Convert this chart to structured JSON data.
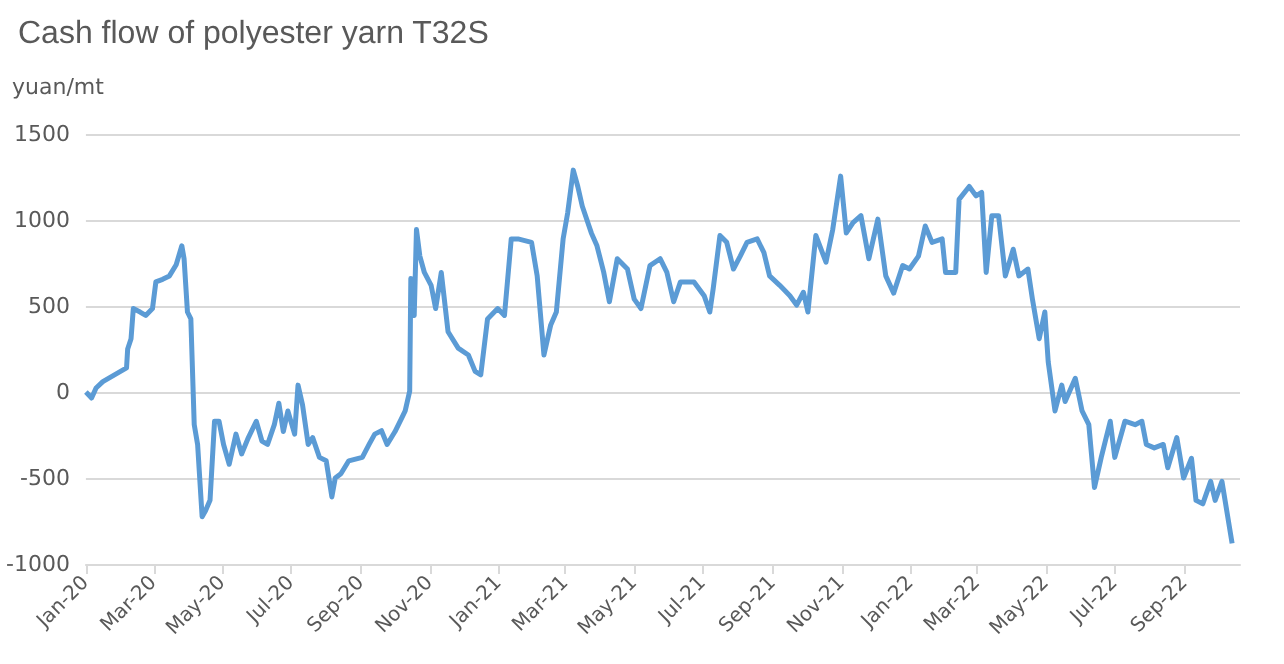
{
  "chart_data": {
    "type": "line",
    "title": "Cash flow of polyester yarn T32S",
    "ylabel": "yuan/mt",
    "x": [
      "2020-01-01",
      "2020-01-06",
      "2020-01-10",
      "2020-01-16",
      "2020-02-06",
      "2020-02-07",
      "2020-02-10",
      "2020-02-12",
      "2020-02-18",
      "2020-02-23",
      "2020-02-29",
      "2020-03-03",
      "2020-03-09",
      "2020-03-15",
      "2020-03-21",
      "2020-03-26",
      "2020-03-28",
      "2020-03-31",
      "2020-04-03",
      "2020-04-06",
      "2020-04-09",
      "2020-04-13",
      "2020-04-16",
      "2020-04-20",
      "2020-04-24",
      "2020-04-28",
      "2020-05-02",
      "2020-05-07",
      "2020-05-13",
      "2020-05-18",
      "2020-05-24",
      "2020-05-31",
      "2020-06-05",
      "2020-06-10",
      "2020-06-16",
      "2020-06-20",
      "2020-06-24",
      "2020-06-28",
      "2020-07-04",
      "2020-07-07",
      "2020-07-11",
      "2020-07-16",
      "2020-07-20",
      "2020-07-26",
      "2020-08-01",
      "2020-08-06",
      "2020-08-09",
      "2020-08-14",
      "2020-08-21",
      "2020-09-02",
      "2020-09-08",
      "2020-09-13",
      "2020-09-19",
      "2020-09-24",
      "2020-10-01",
      "2020-10-07",
      "2020-10-10",
      "2020-10-14",
      "2020-10-15",
      "2020-10-18",
      "2020-10-20",
      "2020-10-23",
      "2020-10-27",
      "2020-11-02",
      "2020-11-06",
      "2020-11-11",
      "2020-11-17",
      "2020-11-26",
      "2020-12-05",
      "2020-12-11",
      "2020-12-16",
      "2020-12-22",
      "2020-12-31",
      "2021-01-06",
      "2021-01-12",
      "2021-01-18",
      "2021-01-30",
      "2021-02-04",
      "2021-02-10",
      "2021-02-16",
      "2021-02-21",
      "2021-02-27",
      "2021-03-03",
      "2021-03-08",
      "2021-03-12",
      "2021-03-16",
      "2021-03-24",
      "2021-03-29",
      "2021-04-04",
      "2021-04-09",
      "2021-04-16",
      "2021-04-25",
      "2021-05-01",
      "2021-05-07",
      "2021-05-15",
      "2021-05-24",
      "2021-05-30",
      "2021-06-05",
      "2021-06-11",
      "2021-06-23",
      "2021-07-02",
      "2021-07-07",
      "2021-07-10",
      "2021-07-16",
      "2021-07-22",
      "2021-07-28",
      "2021-08-03",
      "2021-08-09",
      "2021-08-18",
      "2021-08-24",
      "2021-08-29",
      "2021-09-07",
      "2021-09-16",
      "2021-09-22",
      "2021-09-28",
      "2021-10-02",
      "2021-10-09",
      "2021-10-18",
      "2021-10-24",
      "2021-10-31",
      "2021-11-05",
      "2021-11-11",
      "2021-11-18",
      "2021-11-25",
      "2021-12-03",
      "2021-12-10",
      "2021-12-17",
      "2021-12-25",
      "2021-12-31",
      "2022-01-08",
      "2022-01-14",
      "2022-01-20",
      "2022-01-29",
      "2022-02-01",
      "2022-02-10",
      "2022-02-13",
      "2022-02-22",
      "2022-02-28",
      "2022-03-05",
      "2022-03-09",
      "2022-03-14",
      "2022-03-20",
      "2022-03-26",
      "2022-04-02",
      "2022-04-07",
      "2022-04-15",
      "2022-04-19",
      "2022-04-25",
      "2022-04-30",
      "2022-05-03",
      "2022-05-09",
      "2022-05-15",
      "2022-05-18",
      "2022-05-27",
      "2022-06-02",
      "2022-06-08",
      "2022-06-13",
      "2022-06-19",
      "2022-06-27",
      "2022-07-01",
      "2022-07-10",
      "2022-07-19",
      "2022-07-25",
      "2022-07-29",
      "2022-08-05",
      "2022-08-13",
      "2022-08-17",
      "2022-08-25",
      "2022-08-31",
      "2022-09-07",
      "2022-09-11",
      "2022-09-17",
      "2022-09-24",
      "2022-09-28",
      "2022-10-04",
      "2022-10-13"
    ],
    "series": [
      {
        "color": "#5b9bd5",
        "values": [
          0,
          -35,
          23,
          60,
          140,
          250,
          310,
          485,
          465,
          445,
          485,
          640,
          655,
          675,
          740,
          850,
          775,
          465,
          425,
          -190,
          -305,
          -725,
          -690,
          -630,
          -170,
          -170,
          -305,
          -420,
          -245,
          -360,
          -265,
          -170,
          -285,
          -305,
          -190,
          -65,
          -230,
          -110,
          -245,
          40,
          -75,
          -305,
          -265,
          -380,
          -400,
          -610,
          -500,
          -475,
          -400,
          -380,
          -305,
          -245,
          -225,
          -305,
          -230,
          -150,
          -110,
          5,
          660,
          445,
          945,
          790,
          695,
          620,
          485,
          695,
          350,
          255,
          215,
          120,
          100,
          425,
          485,
          445,
          890,
          890,
          870,
          675,
          215,
          390,
          465,
          890,
          1040,
          1290,
          1195,
          1080,
          925,
          850,
          695,
          525,
          775,
          715,
          540,
          485,
          735,
          775,
          695,
          525,
          640,
          640,
          560,
          465,
          600,
          910,
          870,
          715,
          790,
          870,
          890,
          810,
          675,
          620,
          560,
          505,
          580,
          465,
          910,
          755,
          945,
          1255,
          925,
          985,
          1025,
          775,
          1005,
          675,
          575,
          735,
          715,
          790,
          965,
          870,
          890,
          695,
          695,
          1120,
          1195,
          1140,
          1160,
          695,
          1025,
          1025,
          675,
          830,
          675,
          715,
          540,
          310,
          465,
          175,
          -110,
          40,
          -55,
          80,
          -110,
          -190,
          -555,
          -380,
          -170,
          -380,
          -170,
          -190,
          -170,
          -305,
          -325,
          -305,
          -440,
          -265,
          -500,
          -385,
          -630,
          -650,
          -520,
          -630,
          -520,
          -880
        ]
      }
    ],
    "xlim": [
      "2020-01-01",
      "2022-10-20"
    ],
    "xticks": [
      {
        "value": "2020-01-01",
        "label": "Jan-20"
      },
      {
        "value": "2020-03-01",
        "label": "Mar-20"
      },
      {
        "value": "2020-05-01",
        "label": "May-20"
      },
      {
        "value": "2020-07-01",
        "label": "Jul-20"
      },
      {
        "value": "2020-09-01",
        "label": "Sep-20"
      },
      {
        "value": "2020-11-01",
        "label": "Nov-20"
      },
      {
        "value": "2021-01-01",
        "label": "Jan-21"
      },
      {
        "value": "2021-03-01",
        "label": "Mar-21"
      },
      {
        "value": "2021-05-01",
        "label": "May-21"
      },
      {
        "value": "2021-07-01",
        "label": "Jul-21"
      },
      {
        "value": "2021-09-01",
        "label": "Sep-21"
      },
      {
        "value": "2021-11-01",
        "label": "Nov-21"
      },
      {
        "value": "2022-01-01",
        "label": "Jan-22"
      },
      {
        "value": "2022-03-01",
        "label": "Mar-22"
      },
      {
        "value": "2022-05-01",
        "label": "May-22"
      },
      {
        "value": "2022-07-01",
        "label": "Jul-22"
      },
      {
        "value": "2022-09-01",
        "label": "Sep-22"
      }
    ],
    "ylim": [
      -1000,
      1500
    ],
    "yticks": [
      -1000,
      -500,
      0,
      500,
      1000,
      1500
    ],
    "grid": "y",
    "marker": "none",
    "line_style": "solid"
  }
}
